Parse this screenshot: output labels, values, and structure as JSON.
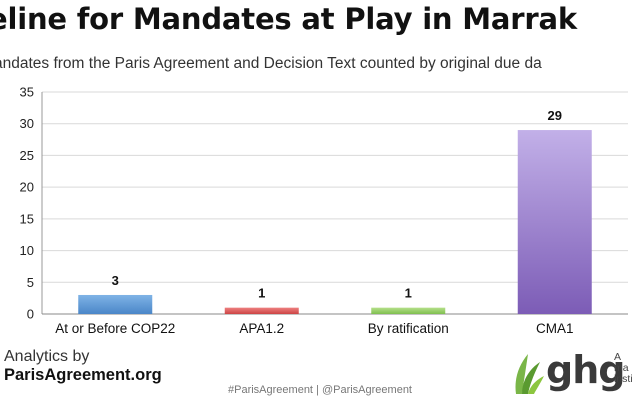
{
  "title": "eline for Mandates at Play in Marrak",
  "subtitle": "andates from the Paris Agreement and Decision Text counted by original due da",
  "footer": {
    "analytics_line1": "Analytics by",
    "analytics_line2": "ParisAgreement.org",
    "hashtags": "#ParisAgreement | @ParisAgreement",
    "ghg_word": "ghg",
    "ghg_side": "A\nma\ninsti"
  },
  "colors": {
    "accent_green": "#6aa84f",
    "bar_blue": "#5b9bd5",
    "bar_red": "#e06666",
    "bar_green": "#93c47d",
    "bar_purple": "#8e7cc3"
  },
  "chart_data": {
    "type": "bar",
    "title": "eline for Mandates at Play in Marrak",
    "subtitle": "andates from the Paris Agreement and Decision Text counted by original due da",
    "xlabel": "",
    "ylabel": "",
    "ylim": [
      0,
      35
    ],
    "yticks": [
      0,
      5,
      10,
      15,
      20,
      25,
      30,
      35
    ],
    "grid": true,
    "legend": "none",
    "categories": [
      "At or Before COP22",
      "APA1.2",
      "By ratification",
      "CMA1"
    ],
    "values": [
      3,
      1,
      1,
      29
    ],
    "data_labels": [
      "3",
      "1",
      "1",
      "29"
    ],
    "bar_colors": [
      "bar_blue",
      "bar_red",
      "bar_green",
      "bar_purple"
    ]
  }
}
